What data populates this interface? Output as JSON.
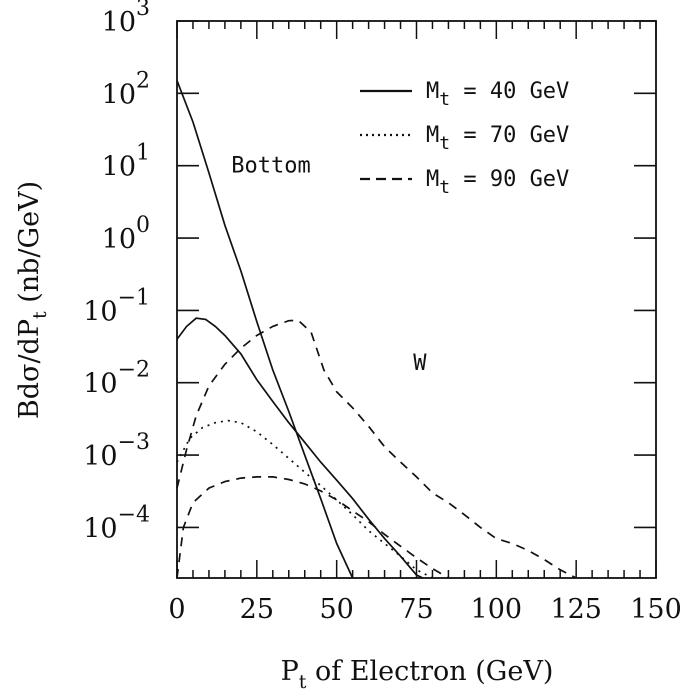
{
  "chart_data": {
    "type": "line",
    "title": "",
    "xlabel": {
      "main": "P",
      "sub": "t",
      "rest": " of Electron (GeV)"
    },
    "ylabel": {
      "main": "Bdσ/dP",
      "sub": "t",
      "rest": " (nb/GeV)"
    },
    "x_scale": "linear",
    "y_scale": "log",
    "xlim": [
      0,
      150
    ],
    "ylim": [
      2e-05,
      1000
    ],
    "x_ticks": [
      "0",
      "25",
      "50",
      "75",
      "100",
      "125",
      "150"
    ],
    "y_ticks": [
      {
        "base": "10",
        "exp": "3"
      },
      {
        "base": "10",
        "exp": "2"
      },
      {
        "base": "10",
        "exp": "1"
      },
      {
        "base": "10",
        "exp": "0"
      },
      {
        "base": "10",
        "exp": "−1"
      },
      {
        "base": "10",
        "exp": "−2"
      },
      {
        "base": "10",
        "exp": "−3"
      },
      {
        "base": "10",
        "exp": "−4"
      }
    ],
    "legend": {
      "placement": "top-right",
      "entries": [
        {
          "style": "solid",
          "main": "M",
          "sub": "t",
          "rest": " = 40 GeV"
        },
        {
          "style": "dotted",
          "main": "M",
          "sub": "t",
          "rest": " = 70 GeV"
        },
        {
          "style": "dashed",
          "main": "M",
          "sub": "t",
          "rest": " = 90 GeV"
        }
      ]
    },
    "annotations": [
      {
        "text": "Bottom",
        "x": 17,
        "y": 8
      },
      {
        "text": "W",
        "x": 74,
        "y": 0.015
      }
    ],
    "series": [
      {
        "style": "solid",
        "points": [
          [
            0,
            150
          ],
          [
            5,
            40
          ],
          [
            10,
            8
          ],
          [
            15,
            1.5
          ],
          [
            20,
            0.35
          ],
          [
            25,
            0.07
          ],
          [
            30,
            0.015
          ],
          [
            35,
            0.004
          ],
          [
            40,
            0.001
          ],
          [
            45,
            0.00025
          ],
          [
            50,
            6e-05
          ],
          [
            55,
            2e-05
          ]
        ]
      },
      {
        "style": "solid",
        "points": [
          [
            0,
            0.04
          ],
          [
            3,
            0.06
          ],
          [
            6,
            0.078
          ],
          [
            9,
            0.075
          ],
          [
            12,
            0.06
          ],
          [
            15,
            0.045
          ],
          [
            20,
            0.025
          ],
          [
            25,
            0.011
          ],
          [
            30,
            0.0055
          ],
          [
            35,
            0.0028
          ],
          [
            40,
            0.0015
          ],
          [
            45,
            0.0008
          ],
          [
            50,
            0.00045
          ],
          [
            55,
            0.00025
          ],
          [
            60,
            0.00013
          ],
          [
            65,
            7e-05
          ],
          [
            70,
            4e-05
          ],
          [
            75,
            2.2e-05
          ],
          [
            77,
            2e-05
          ]
        ]
      },
      {
        "style": "dotted",
        "points": [
          [
            0,
            0.0008
          ],
          [
            4,
            0.0017
          ],
          [
            8,
            0.0024
          ],
          [
            12,
            0.0028
          ],
          [
            16,
            0.003
          ],
          [
            20,
            0.0028
          ],
          [
            25,
            0.0021
          ],
          [
            30,
            0.0014
          ],
          [
            35,
            0.0009
          ],
          [
            40,
            0.00058
          ],
          [
            45,
            0.00038
          ],
          [
            50,
            0.00024
          ],
          [
            55,
            0.00015
          ],
          [
            60,
            9e-05
          ],
          [
            65,
            6e-05
          ],
          [
            70,
            4e-05
          ],
          [
            75,
            2.6e-05
          ],
          [
            80,
            2e-05
          ]
        ]
      },
      {
        "style": "dashed",
        "points": [
          [
            0,
            2e-05
          ],
          [
            2,
            0.0001
          ],
          [
            5,
            0.00022
          ],
          [
            10,
            0.00035
          ],
          [
            15,
            0.00043
          ],
          [
            20,
            0.00048
          ],
          [
            25,
            0.0005
          ],
          [
            30,
            0.0005
          ],
          [
            35,
            0.00046
          ],
          [
            40,
            0.0004
          ],
          [
            45,
            0.00032
          ],
          [
            50,
            0.00024
          ],
          [
            55,
            0.00017
          ],
          [
            60,
            0.00012
          ],
          [
            65,
            8e-05
          ],
          [
            70,
            5.5e-05
          ],
          [
            75,
            3.8e-05
          ],
          [
            80,
            2.7e-05
          ],
          [
            85,
            2e-05
          ]
        ]
      },
      {
        "style": "dashed",
        "points": [
          [
            0,
            0.00035
          ],
          [
            3,
            0.0012
          ],
          [
            6,
            0.0035
          ],
          [
            10,
            0.009
          ],
          [
            15,
            0.018
          ],
          [
            20,
            0.03
          ],
          [
            25,
            0.045
          ],
          [
            30,
            0.06
          ],
          [
            35,
            0.072
          ],
          [
            38,
            0.073
          ],
          [
            42,
            0.05
          ],
          [
            46,
            0.015
          ],
          [
            50,
            0.0075
          ],
          [
            55,
            0.0045
          ],
          [
            60,
            0.0025
          ],
          [
            65,
            0.0013
          ],
          [
            70,
            0.0008
          ],
          [
            75,
            0.0005
          ],
          [
            80,
            0.0003
          ],
          [
            85,
            0.00022
          ],
          [
            90,
            0.00015
          ],
          [
            95,
            0.0001
          ],
          [
            100,
            7e-05
          ],
          [
            105,
            6e-05
          ],
          [
            110,
            4.8e-05
          ],
          [
            115,
            3.6e-05
          ],
          [
            120,
            2.6e-05
          ],
          [
            125,
            2e-05
          ]
        ]
      }
    ]
  }
}
